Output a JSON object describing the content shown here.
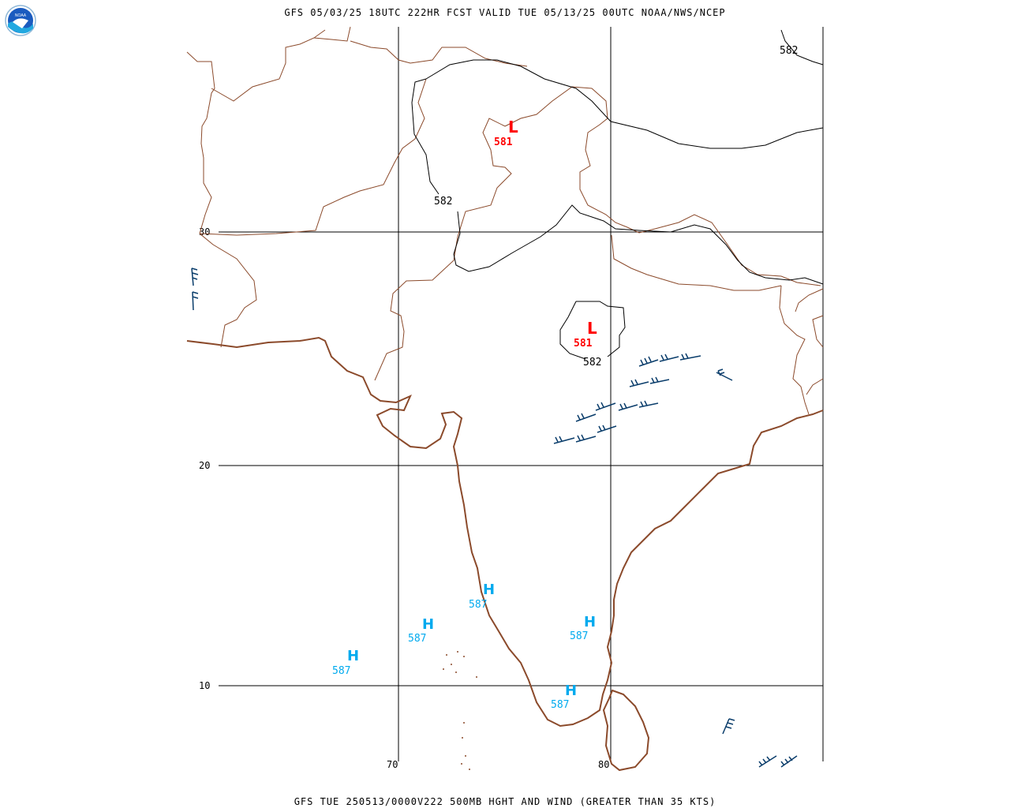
{
  "header": {
    "title": "GFS 05/03/25 18UTC 222HR FCST VALID TUE 05/13/25 00UTC NOAA/NWS/NCEP"
  },
  "footer": {
    "title": "GFS TUE 250513/0000V222 500MB HGHT AND WIND (GREATER THAN 35 KTS)"
  },
  "logo": {
    "text": "NOAA"
  },
  "grid": {
    "lat_labels": [
      "30",
      "20",
      "10"
    ],
    "lon_labels": [
      "70",
      "80"
    ]
  },
  "contours": {
    "labels": [
      "582",
      "582",
      "582"
    ]
  },
  "lows": [
    {
      "symbol": "L",
      "value": "581"
    },
    {
      "symbol": "L",
      "value": "581"
    }
  ],
  "highs": [
    {
      "symbol": "H",
      "value": "587"
    },
    {
      "symbol": "H",
      "value": "587"
    },
    {
      "symbol": "H",
      "value": "587"
    },
    {
      "symbol": "H",
      "value": "587"
    },
    {
      "symbol": "H",
      "value": "587"
    }
  ],
  "colors": {
    "low": "#ff0000",
    "high": "#00aaee",
    "border": "#8b4a2b",
    "contour": "#000000",
    "wind_barb": "#0a3d6b"
  }
}
